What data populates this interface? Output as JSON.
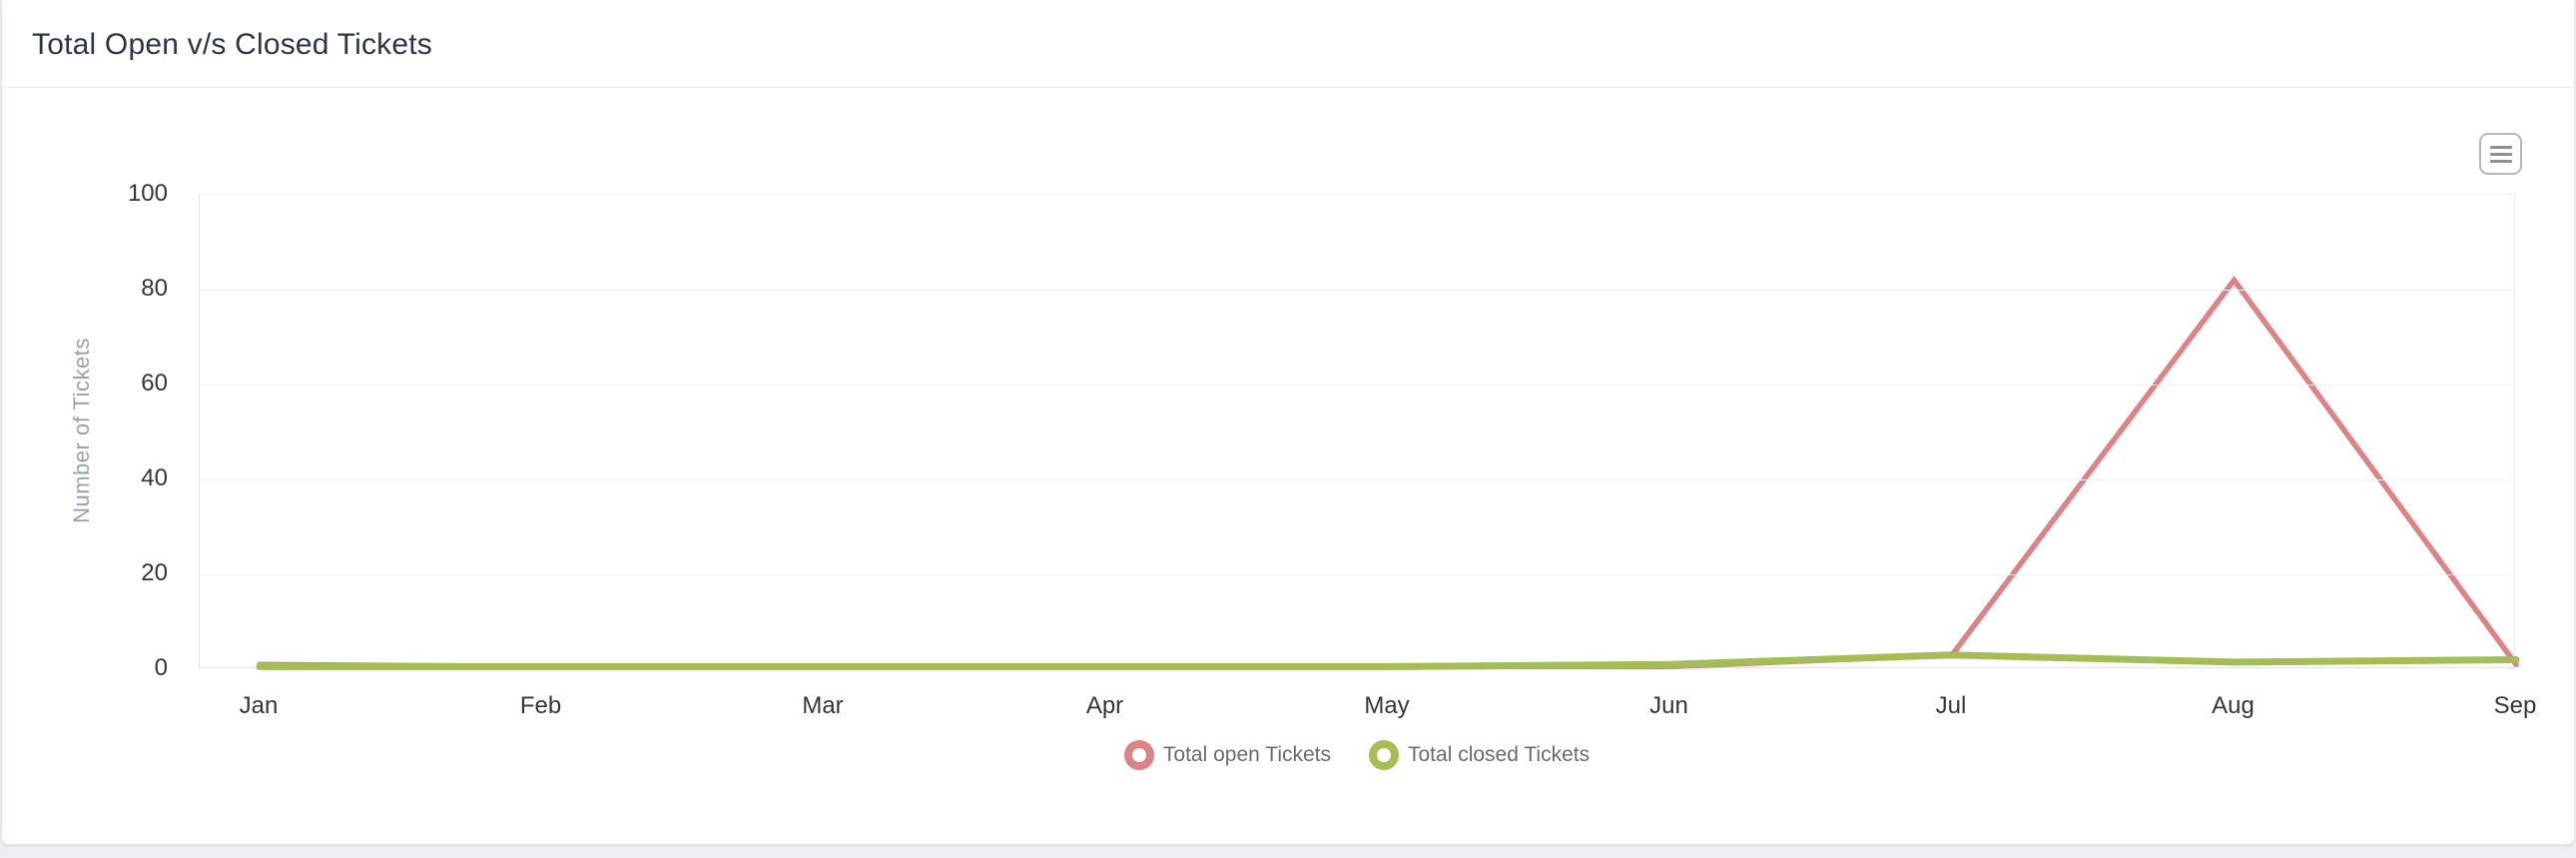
{
  "header": {
    "title": "Total Open v/s Closed Tickets"
  },
  "toolbar": {
    "menu_icon": "hamburger-menu-icon"
  },
  "colors": {
    "open_series": "#dd8385",
    "closed_series": "#a4bd54"
  },
  "chart_data": {
    "type": "line",
    "title": "Total Open v/s Closed Tickets",
    "categories": [
      "Jan",
      "Feb",
      "Mar",
      "Apr",
      "May",
      "Jun",
      "Jul",
      "Aug",
      "Sep"
    ],
    "series": [
      {
        "name": "Total open Tickets",
        "color_key": "open_series",
        "values": [
          1,
          0,
          0,
          0,
          0,
          0,
          3,
          82,
          1
        ]
      },
      {
        "name": "Total closed Tickets",
        "color_key": "closed_series",
        "values": [
          0,
          0,
          0,
          0,
          0,
          1,
          3,
          1.5,
          2
        ]
      }
    ],
    "xlabel": "",
    "ylabel": "Number of Tickets",
    "ylim": [
      0,
      100
    ],
    "yticks": [
      0,
      20,
      40,
      60,
      80,
      100
    ],
    "grid": "horizontal-only",
    "legend_position": "bottom-center"
  }
}
